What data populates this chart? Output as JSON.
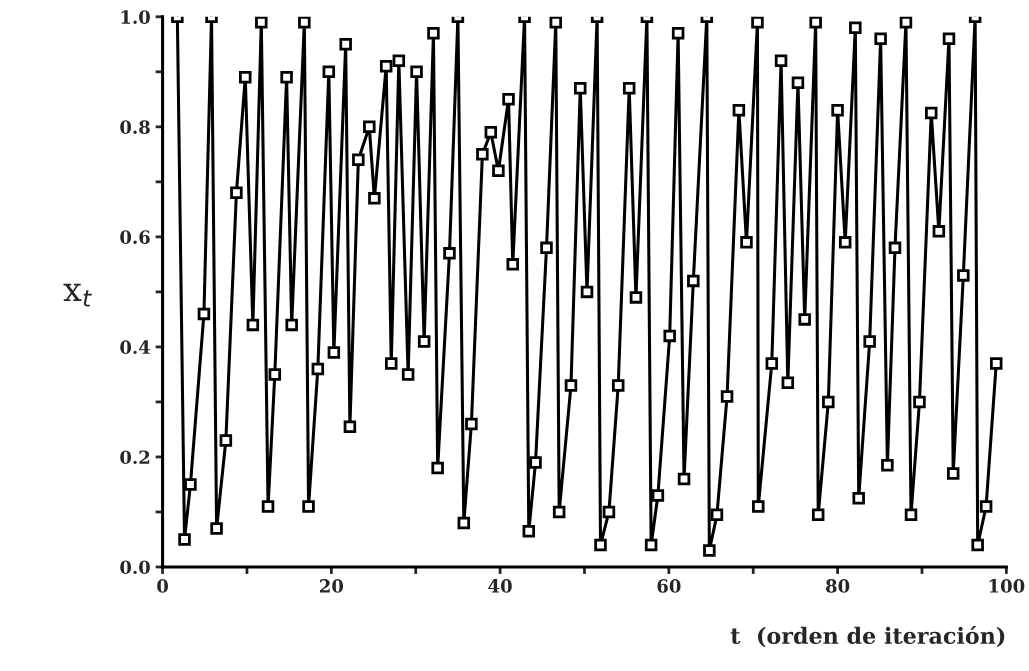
{
  "chart_data": {
    "type": "line",
    "xlabel": "t  (orden de iteración)",
    "ylabel": "x$_{t}$",
    "marker": "square",
    "line_style": "solid",
    "grid": false,
    "xlim": [
      0,
      100
    ],
    "xticks": [
      0,
      {
        "value": 10,
        "label": null
      },
      20,
      {
        "value": 30,
        "label": null
      },
      40,
      {
        "value": 50,
        "label": null
      },
      60,
      {
        "value": 70,
        "label": null
      },
      80,
      {
        "value": 90,
        "label": null
      },
      100
    ],
    "ylim": [
      0,
      1.0
    ],
    "yticks": [
      {
        "value": 0,
        "label": "0.0"
      },
      {
        "value": 0.1,
        "label": null
      },
      {
        "value": 0.2,
        "label": "0.2"
      },
      {
        "value": 0.3,
        "label": null
      },
      {
        "value": 0.4,
        "label": "0.4"
      },
      {
        "value": 0.5,
        "label": null
      },
      {
        "value": 0.6,
        "label": "0.6"
      },
      {
        "value": 0.7,
        "label": null
      },
      {
        "value": 0.8,
        "label": "0.8"
      },
      {
        "value": 0.9,
        "label": null
      },
      {
        "value": 1.0,
        "label": "1.0"
      }
    ],
    "series": [
      {
        "color": "#000000",
        "x": [
          1.75,
          2.6,
          3.3,
          4.9,
          5.8,
          6.4,
          7.5,
          8.75,
          9.8,
          10.7,
          11.7,
          12.5,
          13.3,
          14.7,
          15.3,
          16.8,
          17.3,
          18.4,
          19.7,
          20.3,
          21.7,
          22.2,
          23.2,
          24.5,
          25.1,
          26.5,
          27.1,
          28.0,
          29.1,
          30.1,
          31.0,
          32.1,
          32.6,
          34.0,
          35.0,
          35.7,
          36.6,
          37.9,
          38.9,
          39.8,
          41.0,
          41.5,
          42.9,
          43.4,
          44.2,
          45.5,
          46.6,
          47.0,
          48.4,
          49.5,
          50.3,
          51.5,
          51.9,
          52.9,
          54.0,
          55.3,
          56.1,
          57.4,
          57.9,
          58.7,
          60.1,
          61.1,
          61.8,
          62.9,
          64.5,
          64.8,
          65.7,
          66.9,
          68.3,
          69.2,
          70.5,
          70.6,
          72.2,
          73.3,
          74.1,
          75.3,
          76.1,
          77.4,
          77.7,
          78.9,
          80.0,
          80.9,
          82.1,
          82.5,
          83.8,
          85.1,
          85.9,
          86.8,
          88.1,
          88.7,
          89.7,
          91.1,
          92.0,
          93.2,
          93.7,
          94.9,
          96.3,
          96.6,
          97.6,
          98.8
        ],
        "values": [
          1.0,
          0.05,
          0.15,
          0.46,
          1.0,
          0.07,
          0.23,
          0.68,
          0.89,
          0.44,
          0.99,
          0.11,
          0.35,
          0.89,
          0.44,
          0.99,
          0.11,
          0.36,
          0.9,
          0.39,
          0.95,
          0.255,
          0.74,
          0.8,
          0.67,
          0.91,
          0.37,
          0.92,
          0.35,
          0.9,
          0.41,
          0.97,
          0.18,
          0.57,
          1.0,
          0.08,
          0.26,
          0.75,
          0.79,
          0.72,
          0.85,
          0.55,
          1.0,
          0.065,
          0.19,
          0.58,
          0.99,
          0.1,
          0.33,
          0.87,
          0.5,
          1.0,
          0.04,
          0.1,
          0.33,
          0.87,
          0.49,
          1.0,
          0.04,
          0.13,
          0.42,
          0.97,
          0.16,
          0.52,
          1.0,
          0.03,
          0.095,
          0.31,
          0.83,
          0.59,
          0.99,
          0.11,
          0.37,
          0.92,
          0.335,
          0.88,
          0.45,
          0.99,
          0.095,
          0.3,
          0.83,
          0.59,
          0.98,
          0.125,
          0.41,
          0.96,
          0.185,
          0.58,
          0.99,
          0.095,
          0.3,
          0.825,
          0.61,
          0.96,
          0.17,
          0.53,
          1.0,
          0.04,
          0.11,
          0.37
        ]
      }
    ]
  }
}
